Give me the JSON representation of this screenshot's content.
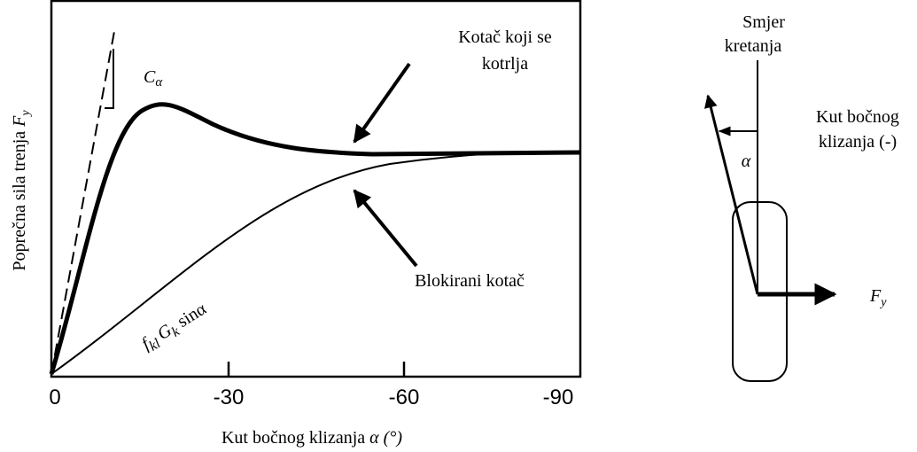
{
  "plot": {
    "x_ticks": [
      "0",
      "-30",
      "-60",
      "-90"
    ],
    "x_axis_label": {
      "text": "Kut bočnog klizanja ",
      "symbol": "α (°)"
    },
    "y_axis_label": {
      "text": "Poprečna sila trenja ",
      "symbol": "F",
      "sub": "y"
    },
    "stiffness_label": {
      "symbol": "C",
      "sub": "α"
    },
    "rolling_label": [
      "Kotač koji se",
      "kotrlja"
    ],
    "locked_label": "Blokirani kotač",
    "formula": {
      "f": "f",
      "f_sub": "kl",
      "g": "G",
      "g_sub": "k",
      "rest": " sinα"
    }
  },
  "wheel": {
    "direction_label": [
      "Smjer",
      "kretanja"
    ],
    "angle_symbol": "α",
    "slip_label": [
      "Kut bočnog",
      "klizanja (-)"
    ],
    "force_label": {
      "symbol": "F",
      "sub": "y"
    }
  }
}
